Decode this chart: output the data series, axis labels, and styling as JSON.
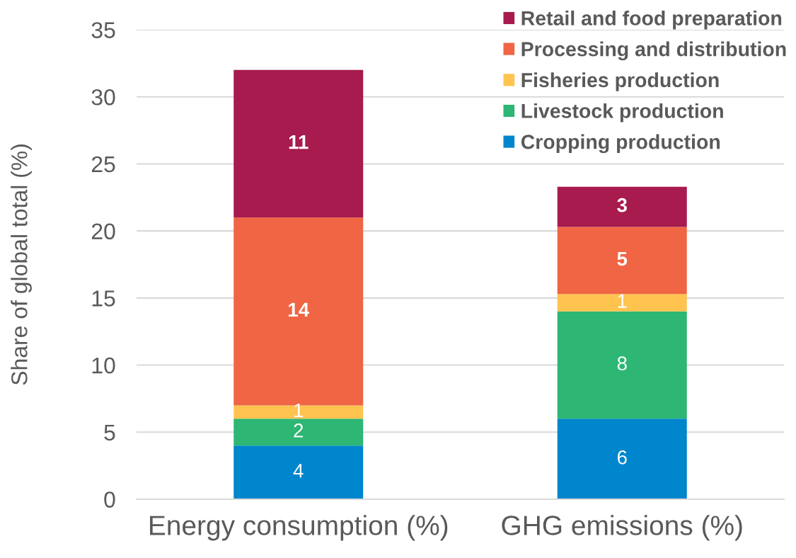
{
  "chart_data": {
    "type": "bar",
    "stacked": true,
    "ylabel": "Share of global total (%)",
    "categories": [
      "Energy consumption (%)",
      "GHG emissions (%)"
    ],
    "series": [
      {
        "name": "Cropping production",
        "color": "#0086cc",
        "values": [
          4,
          6
        ],
        "value_labels": [
          "4",
          "6"
        ]
      },
      {
        "name": "Livestock production",
        "color": "#2db674",
        "values": [
          2,
          8
        ],
        "value_labels": [
          "2",
          "8"
        ]
      },
      {
        "name": "Fisheries production",
        "color": "#ffc34f",
        "values": [
          1,
          1.3
        ],
        "value_labels": [
          "1",
          "1"
        ]
      },
      {
        "name": "Processing and distribution",
        "color": "#f06543",
        "values": [
          14,
          5
        ],
        "value_labels": [
          "14",
          "5"
        ]
      },
      {
        "name": "Retail and food preparation",
        "color": "#a71b4e",
        "values": [
          11,
          3
        ],
        "value_labels": [
          "11",
          "3"
        ]
      }
    ],
    "ylim": [
      0,
      35
    ],
    "yticks": [
      0,
      5,
      10,
      15,
      20,
      25,
      30,
      35
    ],
    "grid": "y",
    "legend": "top right"
  }
}
